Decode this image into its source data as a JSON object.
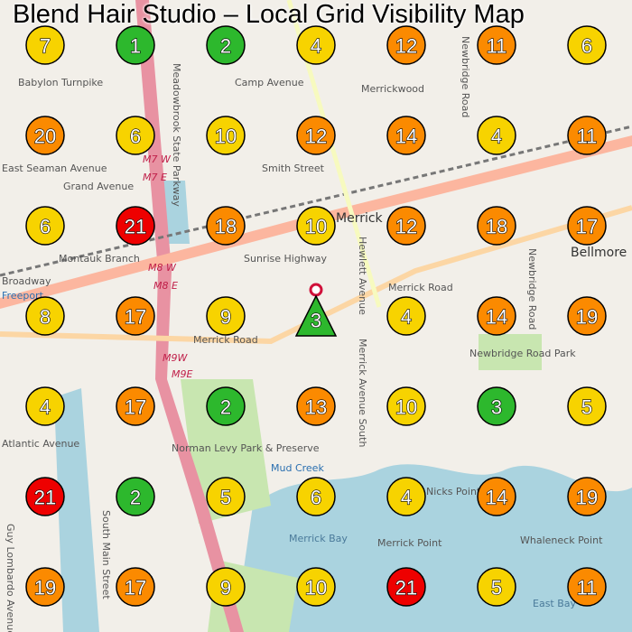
{
  "title": "Blend Hair Studio – Local Grid Visibility Map",
  "colors": {
    "green": "#2db82d",
    "yellow": "#f7d300",
    "orange": "#fb8a00",
    "red": "#ee0000",
    "water": "#aad3df",
    "park": "#c8e6b0",
    "highway": "#e892a2",
    "primary": "#fcd6a4"
  },
  "map_labels": [
    "Camp Avenue",
    "Merrickwood",
    "Newbridge Road",
    "Babylon Turnpike",
    "East Seaman Avenue",
    "Smith Street",
    "Montauk Branch",
    "Grand Avenue",
    "Sunrise Highway",
    "Merrick",
    "Hewlett Avenue",
    "Newbridge Road",
    "Bellmore",
    "Broadway",
    "Merrick Road",
    "Merrick Road",
    "Merrick Avenue South",
    "Newbridge Road Park",
    "Atlantic Avenue",
    "Freeport",
    "Norman Levy Park & Preserve",
    "Mud Creek",
    "Nicks Point",
    "Merrick Bay",
    "Merrick Point",
    "Whaleneck Point",
    "East Bay",
    "South Main Street",
    "Guy Lombardo Avenue",
    "Meadowbrook State Parkway",
    "M7 W",
    "M7 E",
    "M8 W",
    "M8 E",
    "M9W",
    "M9E"
  ],
  "business_marker": {
    "rank": 3,
    "shape": "triangle",
    "color": "green"
  },
  "grid": [
    [
      {
        "rank": 7,
        "color": "yellow"
      },
      {
        "rank": 1,
        "color": "green"
      },
      {
        "rank": 2,
        "color": "green"
      },
      {
        "rank": 4,
        "color": "yellow"
      },
      {
        "rank": 12,
        "color": "orange"
      },
      {
        "rank": 11,
        "color": "orange"
      },
      {
        "rank": 6,
        "color": "yellow"
      }
    ],
    [
      {
        "rank": 20,
        "color": "orange"
      },
      {
        "rank": 6,
        "color": "yellow"
      },
      {
        "rank": 10,
        "color": "yellow"
      },
      {
        "rank": 12,
        "color": "orange"
      },
      {
        "rank": 14,
        "color": "orange"
      },
      {
        "rank": 4,
        "color": "yellow"
      },
      {
        "rank": 11,
        "color": "orange"
      }
    ],
    [
      {
        "rank": 6,
        "color": "yellow"
      },
      {
        "rank": 21,
        "color": "red"
      },
      {
        "rank": 18,
        "color": "orange"
      },
      {
        "rank": 10,
        "color": "yellow"
      },
      {
        "rank": 12,
        "color": "orange"
      },
      {
        "rank": 18,
        "color": "orange"
      },
      {
        "rank": 17,
        "color": "orange"
      }
    ],
    [
      {
        "rank": 8,
        "color": "yellow"
      },
      {
        "rank": 17,
        "color": "orange"
      },
      {
        "rank": 9,
        "color": "yellow"
      },
      {
        "rank": 3,
        "color": "green",
        "center": true
      },
      {
        "rank": 4,
        "color": "yellow"
      },
      {
        "rank": 14,
        "color": "orange"
      },
      {
        "rank": 19,
        "color": "orange"
      }
    ],
    [
      {
        "rank": 4,
        "color": "yellow"
      },
      {
        "rank": 17,
        "color": "orange"
      },
      {
        "rank": 2,
        "color": "green"
      },
      {
        "rank": 13,
        "color": "orange"
      },
      {
        "rank": 10,
        "color": "yellow"
      },
      {
        "rank": 3,
        "color": "green"
      },
      {
        "rank": 5,
        "color": "yellow"
      }
    ],
    [
      {
        "rank": 21,
        "color": "red"
      },
      {
        "rank": 2,
        "color": "green"
      },
      {
        "rank": 5,
        "color": "yellow"
      },
      {
        "rank": 6,
        "color": "yellow"
      },
      {
        "rank": 4,
        "color": "yellow"
      },
      {
        "rank": 14,
        "color": "orange"
      },
      {
        "rank": 19,
        "color": "orange"
      }
    ],
    [
      {
        "rank": 19,
        "color": "orange"
      },
      {
        "rank": 17,
        "color": "orange"
      },
      {
        "rank": 9,
        "color": "yellow"
      },
      {
        "rank": 10,
        "color": "yellow"
      },
      {
        "rank": 21,
        "color": "red"
      },
      {
        "rank": 5,
        "color": "yellow"
      },
      {
        "rank": 11,
        "color": "orange"
      }
    ]
  ]
}
